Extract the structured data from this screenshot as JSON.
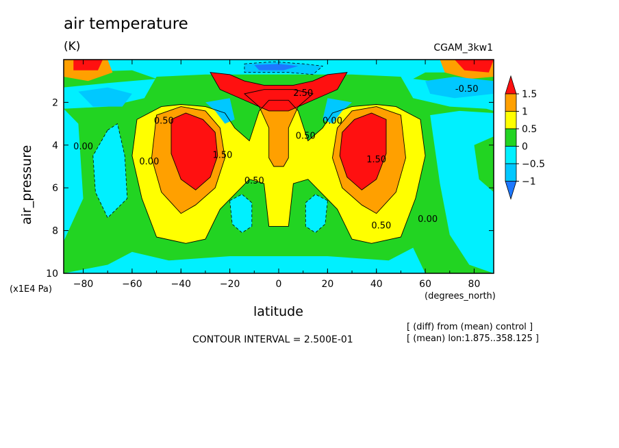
{
  "title": "air temperature",
  "units": "(K)",
  "run_label": "CGAM_3kw1",
  "contour_interval": "CONTOUR INTERVAL = 2.500E-01",
  "notes": [
    "[ (diff) from (mean) control ]",
    "[ (mean) lon:1.875..358.125 ]"
  ],
  "colors": {
    "le_-1": "#1e78ff",
    "-1_-0.5": "#00c8ff",
    "-0.5_0": "#00f0ff",
    "0_0.5": "#22d422",
    "0.5_1": "#ffff00",
    "1_1.5": "#ffa000",
    "ge_1.5": "#ff1010"
  },
  "chart_data": {
    "type": "contour",
    "title": "air temperature",
    "units": "(K)",
    "xlabel": "latitude",
    "xunits": "(degrees_north)",
    "ylabel": "air_pressure",
    "yunits": "(x1E4 Pa)",
    "xlim": [
      -88,
      88
    ],
    "ylim": [
      0,
      10
    ],
    "y_inverted": true,
    "xticks": [
      -80,
      -60,
      -40,
      -20,
      0,
      20,
      40,
      60,
      80
    ],
    "yticks": [
      2,
      4,
      6,
      8,
      10
    ],
    "colorbar": {
      "levels": [
        1.5,
        1,
        0.5,
        0,
        -0.5,
        -1
      ],
      "labels": [
        "1.5",
        "1",
        "0.5",
        "0",
        "−0.5",
        "−1"
      ]
    },
    "contour_labels": [
      {
        "lat": -80,
        "p": 4.2,
        "text": "0.00"
      },
      {
        "lat": -53,
        "p": 4.9,
        "text": "0.00"
      },
      {
        "lat": -47,
        "p": 3.0,
        "text": "0.50"
      },
      {
        "lat": -23,
        "p": 4.6,
        "text": "1.50"
      },
      {
        "lat": -10,
        "p": 5.8,
        "text": "0.50"
      },
      {
        "lat": 11,
        "p": 3.7,
        "text": "0.50"
      },
      {
        "lat": 22,
        "p": 3.0,
        "text": "0.00"
      },
      {
        "lat": 40,
        "p": 4.8,
        "text": "1.50"
      },
      {
        "lat": 42,
        "p": 7.9,
        "text": "0.50"
      },
      {
        "lat": 61,
        "p": 7.6,
        "text": "0.00"
      },
      {
        "lat": 77,
        "p": 1.5,
        "text": "-0.50"
      },
      {
        "lat": 10,
        "p": 1.7,
        "text": "2.50"
      }
    ],
    "features": [
      {
        "lat": -32,
        "p": 3.6,
        "value": 1.9,
        "kind": "max"
      },
      {
        "lat": 32,
        "p": 3.6,
        "value": 1.9,
        "kind": "max"
      },
      {
        "lat": 0,
        "p": 1.6,
        "value": 2.6,
        "kind": "max"
      },
      {
        "lat": -15,
        "p": 7.2,
        "value": -0.3,
        "kind": "min"
      },
      {
        "lat": 15,
        "p": 7.2,
        "value": -0.3,
        "kind": "min"
      }
    ]
  }
}
